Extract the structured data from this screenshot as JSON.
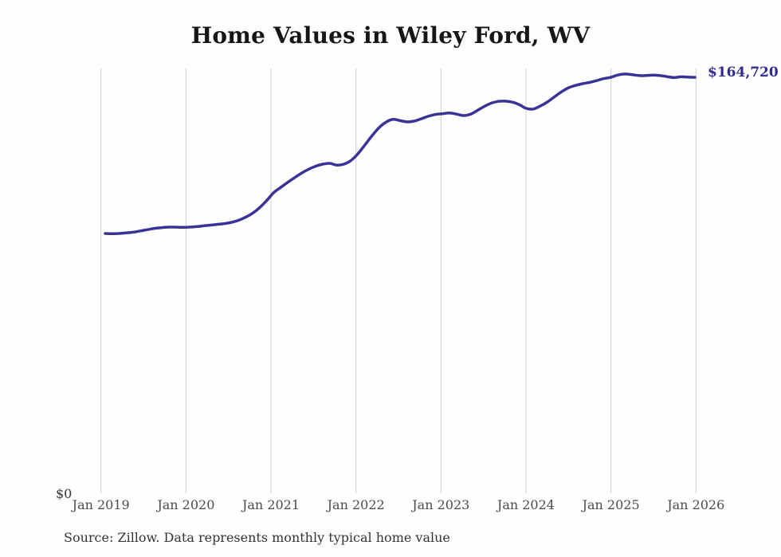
{
  "header": {
    "title": "Home Values in Wiley Ford, WV"
  },
  "axis": {
    "y_zero_label": "$0",
    "x_tick_labels": [
      "Jan 2019",
      "Jan 2020",
      "Jan 2021",
      "Jan 2022",
      "Jan 2023",
      "Jan 2024",
      "Jan 2025",
      "Jan 2026"
    ]
  },
  "annotations": {
    "end_value_label": "$164,720"
  },
  "footer": {
    "source_note": "Source: Zillow. Data represents monthly typical home value"
  },
  "colors": {
    "line": "#3a3397",
    "end_label": "#312b8d",
    "gridline": "#cccccc",
    "title_text": "#161616",
    "axis_text": "#4a4a4a",
    "source_text": "#333333",
    "background": "#fefefe"
  },
  "chart_data": {
    "type": "line",
    "title": "Home Values in Wiley Ford, WV",
    "xlabel": "",
    "ylabel": "",
    "unit": "USD",
    "x_start": "2019-01",
    "x_end": "2026-01",
    "x_step_months": 1,
    "x_tick_labels": [
      "Jan 2019",
      "Jan 2020",
      "Jan 2021",
      "Jan 2022",
      "Jan 2023",
      "Jan 2024",
      "Jan 2025",
      "Jan 2026"
    ],
    "ylim": [
      0,
      180000
    ],
    "grid": "vertical-only",
    "legend": "none",
    "final_value": 164720,
    "final_value_label": "$164,720",
    "series": [
      {
        "name": "Typical home value",
        "values": [
          103000,
          102900,
          103000,
          103200,
          103500,
          104000,
          104500,
          105000,
          105300,
          105500,
          105500,
          105400,
          105500,
          105700,
          106000,
          106300,
          106600,
          106900,
          107400,
          108200,
          109400,
          111000,
          113200,
          116000,
          119100,
          121200,
          123200,
          125100,
          126900,
          128400,
          129600,
          130400,
          130700,
          130000,
          130400,
          131800,
          134500,
          138000,
          141600,
          144800,
          147000,
          148100,
          147600,
          147100,
          147400,
          148300,
          149300,
          150000,
          150300,
          150600,
          150200,
          149600,
          150100,
          151600,
          153200,
          154500,
          155200,
          155300,
          154900,
          153900,
          152400,
          152200,
          153400,
          155000,
          157000,
          159000,
          160600,
          161500,
          162200,
          162700,
          163400,
          164200,
          164700,
          165600,
          166000,
          165800,
          165400,
          165400,
          165600,
          165400,
          165000,
          164600,
          164900,
          164800,
          164720
        ]
      }
    ]
  }
}
